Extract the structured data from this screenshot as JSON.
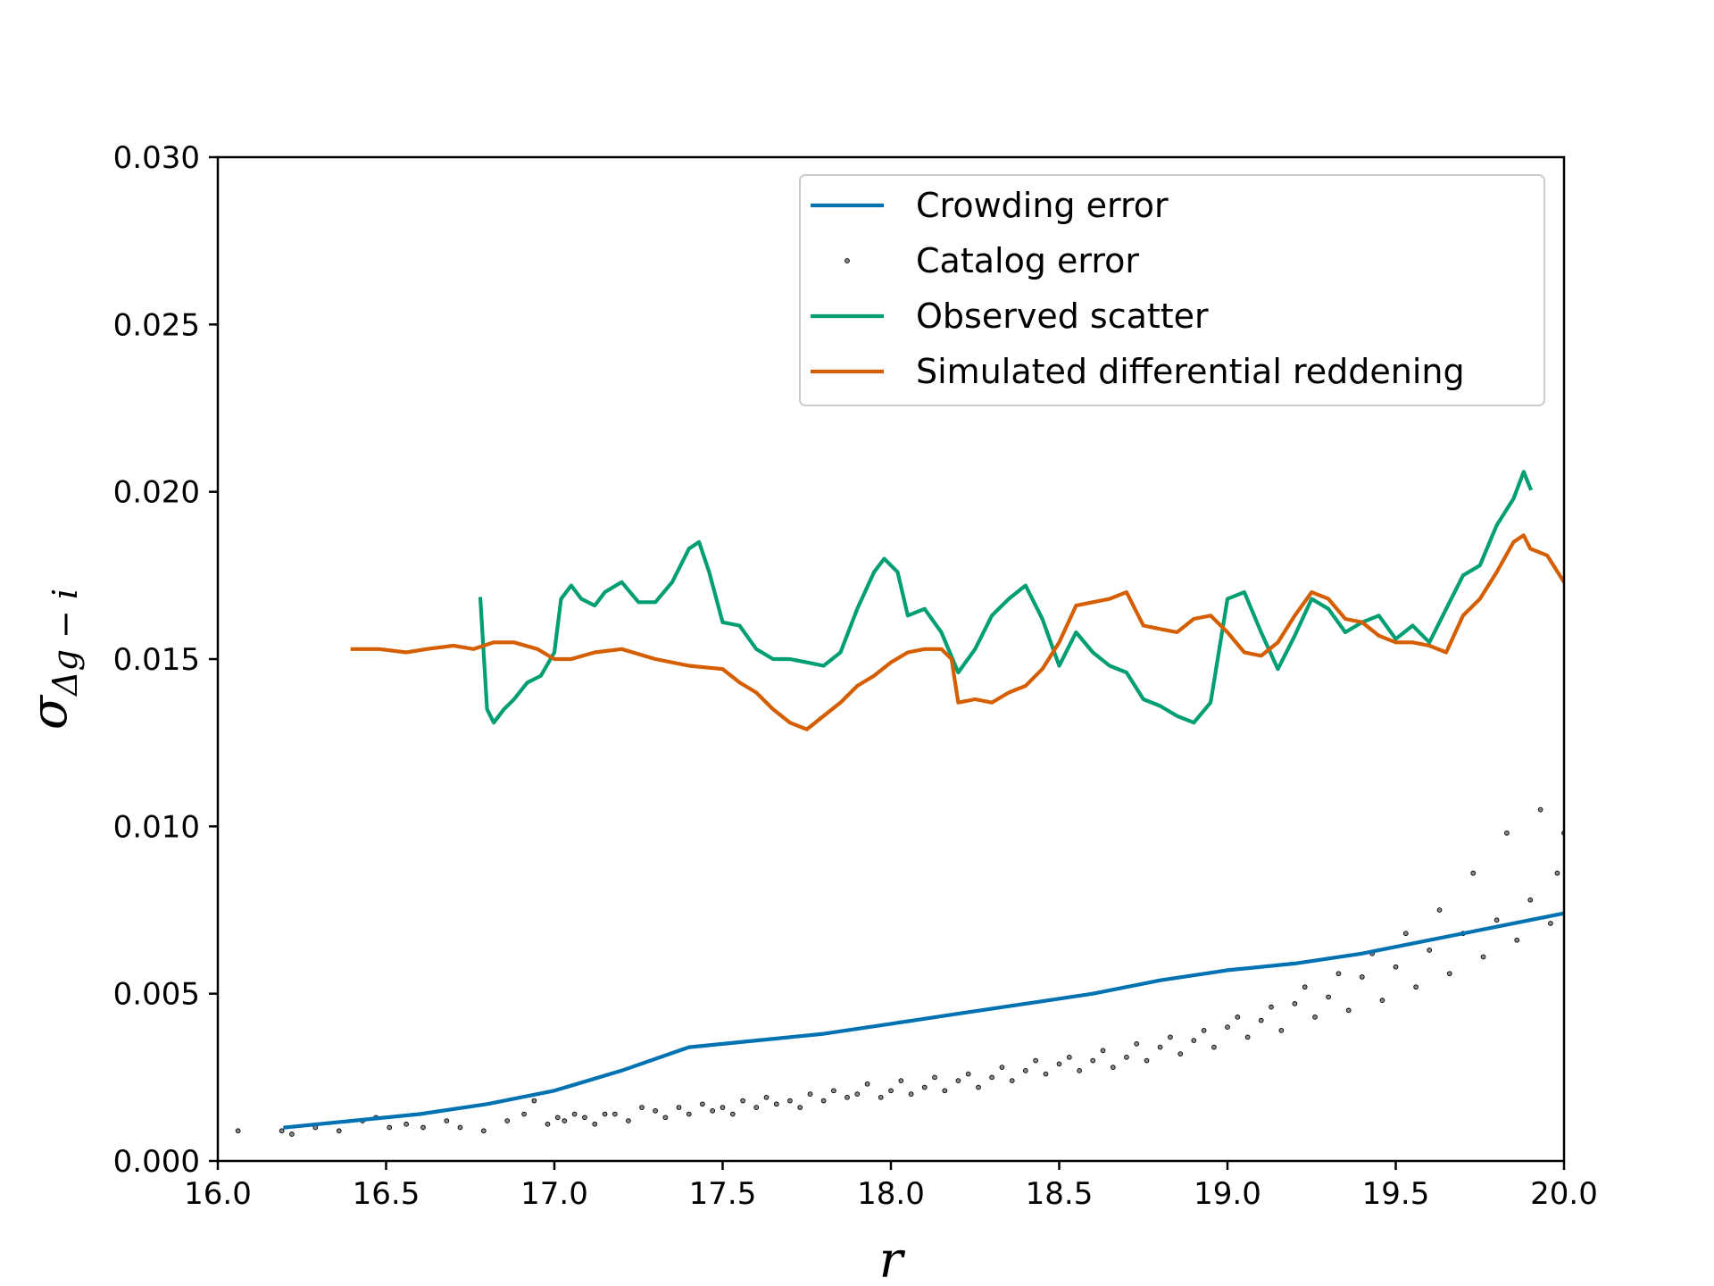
{
  "chart_data": {
    "type": "line",
    "title": "",
    "xlabel": "r",
    "ylabel_symbol": "σ",
    "ylabel_subscript": "Δg − i",
    "xlim": [
      16.0,
      20.0
    ],
    "ylim": [
      0.0,
      0.03
    ],
    "x_ticks": [
      16.0,
      16.5,
      17.0,
      17.5,
      18.0,
      18.5,
      19.0,
      19.5,
      20.0
    ],
    "x_tick_labels": [
      "16.0",
      "16.5",
      "17.0",
      "17.5",
      "18.0",
      "18.5",
      "19.0",
      "19.5",
      "20.0"
    ],
    "y_ticks": [
      0.0,
      0.005,
      0.01,
      0.015,
      0.02,
      0.025,
      0.03
    ],
    "y_tick_labels": [
      "0.000",
      "0.005",
      "0.010",
      "0.015",
      "0.020",
      "0.025",
      "0.030"
    ],
    "grid": false,
    "legend_position": "top-right",
    "colors": {
      "crowding": "#0072b2",
      "catalog": "#000000",
      "observed": "#009e73",
      "simulated": "#d55e00"
    },
    "legend": [
      {
        "label": "Crowding error",
        "kind": "line",
        "series": "crowding"
      },
      {
        "label": "Catalog error",
        "kind": "point",
        "series": "catalog"
      },
      {
        "label": "Observed scatter",
        "kind": "line",
        "series": "observed"
      },
      {
        "label": "Simulated differential reddening",
        "kind": "line",
        "series": "simulated"
      }
    ],
    "series": [
      {
        "name": "Crowding error",
        "key": "crowding",
        "kind": "line",
        "x": [
          16.2,
          16.4,
          16.6,
          16.8,
          17.0,
          17.2,
          17.4,
          17.6,
          17.8,
          18.0,
          18.2,
          18.4,
          18.6,
          18.8,
          19.0,
          19.2,
          19.4,
          19.6,
          19.8,
          20.0
        ],
        "y": [
          0.001,
          0.0012,
          0.0014,
          0.0017,
          0.0021,
          0.0027,
          0.0034,
          0.0036,
          0.0038,
          0.0041,
          0.0044,
          0.0047,
          0.005,
          0.0054,
          0.0057,
          0.0059,
          0.0062,
          0.0066,
          0.007,
          0.0074
        ]
      },
      {
        "name": "Observed scatter",
        "key": "observed",
        "kind": "line",
        "x": [
          16.78,
          16.8,
          16.82,
          16.85,
          16.88,
          16.92,
          16.96,
          17.0,
          17.02,
          17.05,
          17.08,
          17.12,
          17.15,
          17.2,
          17.25,
          17.3,
          17.35,
          17.4,
          17.43,
          17.46,
          17.5,
          17.55,
          17.6,
          17.65,
          17.7,
          17.75,
          17.8,
          17.85,
          17.9,
          17.95,
          17.98,
          18.02,
          18.05,
          18.1,
          18.15,
          18.2,
          18.25,
          18.3,
          18.35,
          18.4,
          18.45,
          18.5,
          18.55,
          18.6,
          18.65,
          18.7,
          18.75,
          18.8,
          18.85,
          18.9,
          18.95,
          19.0,
          19.05,
          19.1,
          19.15,
          19.2,
          19.25,
          19.3,
          19.35,
          19.4,
          19.45,
          19.5,
          19.55,
          19.6,
          19.65,
          19.7,
          19.75,
          19.8,
          19.85,
          19.88,
          19.9
        ],
        "y": [
          0.0168,
          0.0135,
          0.0131,
          0.0135,
          0.0138,
          0.0143,
          0.0145,
          0.0152,
          0.0168,
          0.0172,
          0.0168,
          0.0166,
          0.017,
          0.0173,
          0.0167,
          0.0167,
          0.0173,
          0.0183,
          0.0185,
          0.0176,
          0.0161,
          0.016,
          0.0153,
          0.015,
          0.015,
          0.0149,
          0.0148,
          0.0152,
          0.0165,
          0.0176,
          0.018,
          0.0176,
          0.0163,
          0.0165,
          0.0158,
          0.0146,
          0.0153,
          0.0163,
          0.0168,
          0.0172,
          0.0162,
          0.0148,
          0.0158,
          0.0152,
          0.0148,
          0.0146,
          0.0138,
          0.0136,
          0.0133,
          0.0131,
          0.0137,
          0.0168,
          0.017,
          0.0158,
          0.0147,
          0.0157,
          0.0168,
          0.0165,
          0.0158,
          0.0161,
          0.0163,
          0.0156,
          0.016,
          0.0155,
          0.0165,
          0.0175,
          0.0178,
          0.019,
          0.0198,
          0.0206,
          0.0201
        ]
      },
      {
        "name": "Simulated differential reddening",
        "key": "simulated",
        "kind": "line",
        "x": [
          16.4,
          16.48,
          16.56,
          16.62,
          16.7,
          16.76,
          16.82,
          16.88,
          16.95,
          17.0,
          17.05,
          17.12,
          17.2,
          17.3,
          17.4,
          17.5,
          17.55,
          17.6,
          17.65,
          17.7,
          17.75,
          17.8,
          17.85,
          17.9,
          17.95,
          18.0,
          18.05,
          18.1,
          18.15,
          18.18,
          18.2,
          18.25,
          18.3,
          18.35,
          18.4,
          18.45,
          18.5,
          18.55,
          18.6,
          18.65,
          18.7,
          18.75,
          18.8,
          18.85,
          18.9,
          18.95,
          19.0,
          19.05,
          19.1,
          19.15,
          19.2,
          19.25,
          19.3,
          19.35,
          19.4,
          19.45,
          19.5,
          19.55,
          19.6,
          19.65,
          19.7,
          19.75,
          19.8,
          19.85,
          19.88,
          19.9,
          19.95,
          20.0
        ],
        "y": [
          0.0153,
          0.0153,
          0.0152,
          0.0153,
          0.0154,
          0.0153,
          0.0155,
          0.0155,
          0.0153,
          0.015,
          0.015,
          0.0152,
          0.0153,
          0.015,
          0.0148,
          0.0147,
          0.0143,
          0.014,
          0.0135,
          0.0131,
          0.0129,
          0.0133,
          0.0137,
          0.0142,
          0.0145,
          0.0149,
          0.0152,
          0.0153,
          0.0153,
          0.015,
          0.0137,
          0.0138,
          0.0137,
          0.014,
          0.0142,
          0.0147,
          0.0155,
          0.0166,
          0.0167,
          0.0168,
          0.017,
          0.016,
          0.0159,
          0.0158,
          0.0162,
          0.0163,
          0.0158,
          0.0152,
          0.0151,
          0.0155,
          0.0163,
          0.017,
          0.0168,
          0.0162,
          0.0161,
          0.0157,
          0.0155,
          0.0155,
          0.0154,
          0.0152,
          0.0163,
          0.0168,
          0.0176,
          0.0185,
          0.0187,
          0.0183,
          0.0181,
          0.0173
        ]
      },
      {
        "name": "Catalog error",
        "key": "catalog",
        "kind": "scatter",
        "x": [
          16.06,
          16.19,
          16.22,
          16.29,
          16.36,
          16.43,
          16.47,
          16.51,
          16.56,
          16.61,
          16.68,
          16.72,
          16.79,
          16.86,
          16.91,
          16.94,
          16.98,
          17.01,
          17.03,
          17.06,
          17.09,
          17.12,
          17.15,
          17.18,
          17.22,
          17.26,
          17.3,
          17.33,
          17.37,
          17.4,
          17.44,
          17.47,
          17.5,
          17.53,
          17.56,
          17.6,
          17.63,
          17.66,
          17.7,
          17.73,
          17.76,
          17.8,
          17.83,
          17.87,
          17.9,
          17.93,
          17.97,
          18.0,
          18.03,
          18.06,
          18.1,
          18.13,
          18.16,
          18.2,
          18.23,
          18.26,
          18.3,
          18.33,
          18.36,
          18.4,
          18.43,
          18.46,
          18.5,
          18.53,
          18.56,
          18.6,
          18.63,
          18.66,
          18.7,
          18.73,
          18.76,
          18.8,
          18.83,
          18.86,
          18.9,
          18.93,
          18.96,
          19.0,
          19.03,
          19.06,
          19.1,
          19.13,
          19.16,
          19.2,
          19.23,
          19.26,
          19.3,
          19.33,
          19.36,
          19.4,
          19.43,
          19.46,
          19.5,
          19.53,
          19.56,
          19.6,
          19.63,
          19.66,
          19.7,
          19.73,
          19.76,
          19.8,
          19.83,
          19.86,
          19.9,
          19.93,
          19.96,
          19.98,
          20.0
        ],
        "y": [
          0.0009,
          0.0009,
          0.0008,
          0.001,
          0.0009,
          0.0012,
          0.0013,
          0.001,
          0.0011,
          0.001,
          0.0012,
          0.001,
          0.0009,
          0.0012,
          0.0014,
          0.0018,
          0.0011,
          0.0013,
          0.0012,
          0.0014,
          0.0013,
          0.0011,
          0.0014,
          0.0014,
          0.0012,
          0.0016,
          0.0015,
          0.0013,
          0.0016,
          0.0014,
          0.0017,
          0.0015,
          0.0016,
          0.0014,
          0.0018,
          0.0016,
          0.0019,
          0.0017,
          0.0018,
          0.0016,
          0.002,
          0.0018,
          0.0021,
          0.0019,
          0.002,
          0.0023,
          0.0019,
          0.0021,
          0.0024,
          0.002,
          0.0022,
          0.0025,
          0.0021,
          0.0024,
          0.0026,
          0.0022,
          0.0025,
          0.0028,
          0.0024,
          0.0027,
          0.003,
          0.0026,
          0.0029,
          0.0031,
          0.0027,
          0.003,
          0.0033,
          0.0028,
          0.0031,
          0.0035,
          0.003,
          0.0034,
          0.0037,
          0.0032,
          0.0036,
          0.0039,
          0.0034,
          0.004,
          0.0043,
          0.0037,
          0.0042,
          0.0046,
          0.0039,
          0.0047,
          0.0052,
          0.0043,
          0.0049,
          0.0056,
          0.0045,
          0.0055,
          0.0062,
          0.0048,
          0.0058,
          0.0068,
          0.0052,
          0.0063,
          0.0075,
          0.0056,
          0.0068,
          0.0086,
          0.0061,
          0.0072,
          0.0098,
          0.0066,
          0.0078,
          0.0105,
          0.0071,
          0.0086,
          0.0098
        ]
      }
    ]
  }
}
